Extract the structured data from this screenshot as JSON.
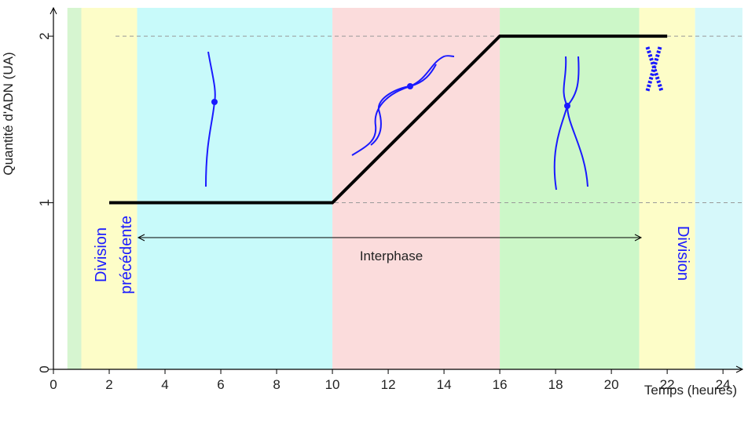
{
  "chart_data": {
    "type": "line",
    "y_label": "Quantité d'ADN (UA)",
    "x_label": "Temps (heures)",
    "xlim": [
      0,
      24.7
    ],
    "ylim": [
      0,
      2.17
    ],
    "xticks": [
      0,
      2,
      4,
      6,
      8,
      10,
      12,
      14,
      16,
      18,
      20,
      22,
      24
    ],
    "yticks": [
      0,
      1,
      2
    ],
    "phases": [
      {
        "start": 0.5,
        "end": 1,
        "color": "#d6f5d0"
      },
      {
        "start": 1,
        "end": 3,
        "color": "#fdfdc8"
      },
      {
        "start": 3,
        "end": 10,
        "color": "#c8fafa"
      },
      {
        "start": 10,
        "end": 16,
        "color": "#fbdcdc"
      },
      {
        "start": 16,
        "end": 21,
        "color": "#ccf7c8"
      },
      {
        "start": 21,
        "end": 23,
        "color": "#fdfdc8"
      },
      {
        "start": 23,
        "end": 24.7,
        "color": "#d6f8fa"
      }
    ],
    "line": {
      "x": [
        2,
        10,
        16,
        22
      ],
      "y": [
        1,
        1,
        2,
        2
      ],
      "color": "#000000"
    },
    "annotations": {
      "interphase": "Interphase",
      "previous_division": [
        "Division",
        "précédente"
      ],
      "division": "Division"
    },
    "annotation_color": "#1a1aff"
  }
}
